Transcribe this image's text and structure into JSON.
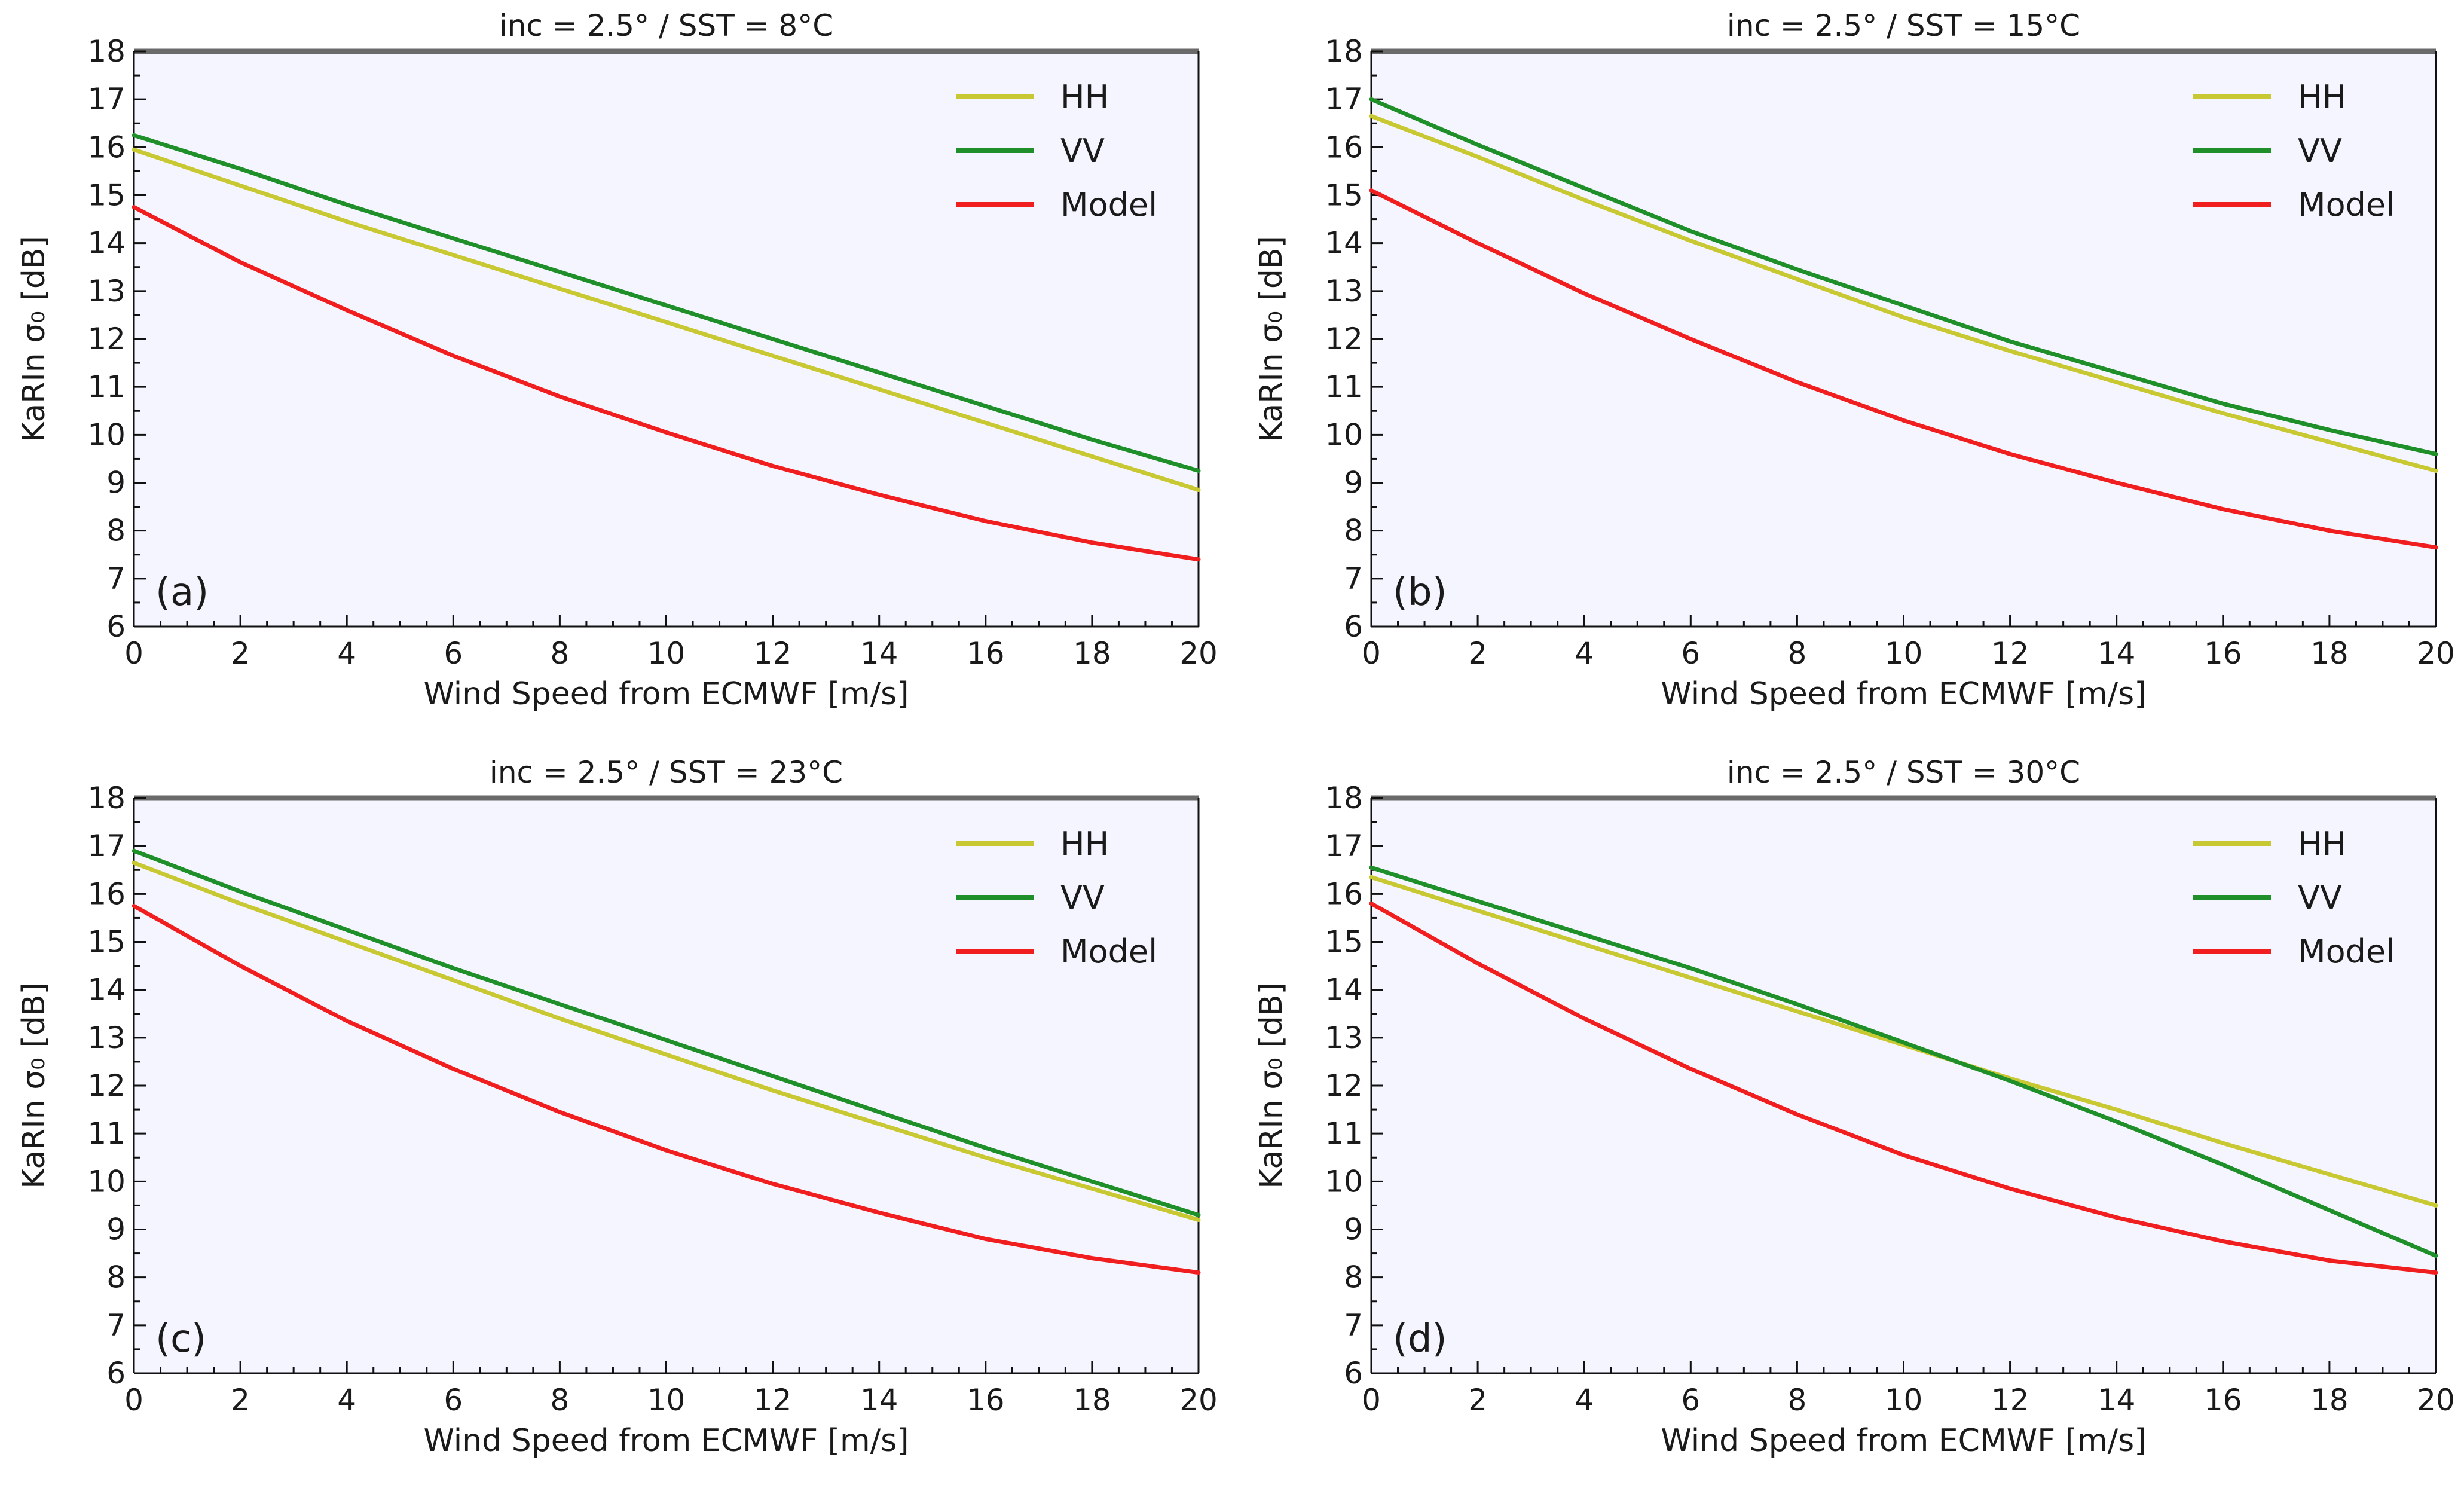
{
  "figure": {
    "background": "#ffffff",
    "plot_background": "#f4f5fe",
    "axis_color": "#555555",
    "colors": {
      "HH": "#c8c832",
      "VV": "#1f8f2a",
      "Model": "#f01e1e"
    }
  },
  "chart_data": [
    {
      "type": "line",
      "panel_label": "(a)",
      "title": "inc = 2.5° / SST = 8°C",
      "xlabel": "Wind Speed from ECMWF [m/s]",
      "ylabel": "KaRIn σ₀ [dB]",
      "xlim": [
        0,
        20
      ],
      "ylim": [
        6,
        18
      ],
      "x_ticks": [
        "0",
        "2",
        "4",
        "6",
        "8",
        "10",
        "12",
        "14",
        "16",
        "18",
        "20"
      ],
      "y_ticks": [
        "6",
        "7",
        "8",
        "9",
        "10",
        "11",
        "12",
        "13",
        "14",
        "15",
        "16",
        "17",
        "18"
      ],
      "grid": false,
      "legend_position": "top-right",
      "x": [
        0,
        2,
        4,
        6,
        8,
        10,
        12,
        14,
        16,
        18,
        20
      ],
      "series": [
        {
          "name": "HH",
          "values": [
            15.95,
            15.2,
            14.45,
            13.75,
            13.05,
            12.35,
            11.65,
            10.95,
            10.25,
            9.55,
            8.85
          ]
        },
        {
          "name": "VV",
          "values": [
            16.25,
            15.55,
            14.8,
            14.1,
            13.4,
            12.7,
            12.0,
            11.3,
            10.6,
            9.9,
            9.25
          ]
        },
        {
          "name": "Model",
          "values": [
            14.75,
            13.6,
            12.6,
            11.65,
            10.8,
            10.05,
            9.35,
            8.75,
            8.2,
            7.75,
            7.4
          ]
        }
      ]
    },
    {
      "type": "line",
      "panel_label": "(b)",
      "title": "inc = 2.5° / SST = 15°C",
      "xlabel": "Wind Speed from ECMWF [m/s]",
      "ylabel": "KaRIn σ₀ [dB]",
      "xlim": [
        0,
        20
      ],
      "ylim": [
        6,
        18
      ],
      "x_ticks": [
        "0",
        "2",
        "4",
        "6",
        "8",
        "10",
        "12",
        "14",
        "16",
        "18",
        "20"
      ],
      "y_ticks": [
        "6",
        "7",
        "8",
        "9",
        "10",
        "11",
        "12",
        "13",
        "14",
        "15",
        "16",
        "17",
        "18"
      ],
      "grid": false,
      "legend_position": "top-right",
      "x": [
        0,
        2,
        4,
        6,
        8,
        10,
        12,
        14,
        16,
        18,
        20
      ],
      "series": [
        {
          "name": "HH",
          "values": [
            16.65,
            15.8,
            14.9,
            14.05,
            13.25,
            12.45,
            11.75,
            11.1,
            10.45,
            9.85,
            9.25
          ]
        },
        {
          "name": "VV",
          "values": [
            17.0,
            16.05,
            15.15,
            14.25,
            13.45,
            12.7,
            11.95,
            11.3,
            10.65,
            10.1,
            9.6
          ]
        },
        {
          "name": "Model",
          "values": [
            15.1,
            14.0,
            12.95,
            12.0,
            11.1,
            10.3,
            9.6,
            9.0,
            8.45,
            8.0,
            7.65
          ]
        }
      ]
    },
    {
      "type": "line",
      "panel_label": "(c)",
      "title": "inc = 2.5° / SST = 23°C",
      "xlabel": "Wind Speed from ECMWF [m/s]",
      "ylabel": "KaRIn σ₀ [dB]",
      "xlim": [
        0,
        20
      ],
      "ylim": [
        6,
        18
      ],
      "x_ticks": [
        "0",
        "2",
        "4",
        "6",
        "8",
        "10",
        "12",
        "14",
        "16",
        "18",
        "20"
      ],
      "y_ticks": [
        "6",
        "7",
        "8",
        "9",
        "10",
        "11",
        "12",
        "13",
        "14",
        "15",
        "16",
        "17",
        "18"
      ],
      "grid": false,
      "legend_position": "top-right",
      "x": [
        0,
        2,
        4,
        6,
        8,
        10,
        12,
        14,
        16,
        18,
        20
      ],
      "series": [
        {
          "name": "HH",
          "values": [
            16.65,
            15.8,
            15.0,
            14.2,
            13.4,
            12.65,
            11.9,
            11.2,
            10.5,
            9.85,
            9.2
          ]
        },
        {
          "name": "VV",
          "values": [
            16.9,
            16.05,
            15.25,
            14.45,
            13.7,
            12.95,
            12.2,
            11.45,
            10.7,
            10.0,
            9.3
          ]
        },
        {
          "name": "Model",
          "values": [
            15.75,
            14.5,
            13.35,
            12.35,
            11.45,
            10.65,
            9.95,
            9.35,
            8.8,
            8.4,
            8.1
          ]
        }
      ]
    },
    {
      "type": "line",
      "panel_label": "(d)",
      "title": "inc = 2.5° / SST = 30°C",
      "xlabel": "Wind Speed from ECMWF [m/s]",
      "ylabel": "KaRIn σ₀ [dB]",
      "xlim": [
        0,
        20
      ],
      "ylim": [
        6,
        18
      ],
      "x_ticks": [
        "0",
        "2",
        "4",
        "6",
        "8",
        "10",
        "12",
        "14",
        "16",
        "18",
        "20"
      ],
      "y_ticks": [
        "6",
        "7",
        "8",
        "9",
        "10",
        "11",
        "12",
        "13",
        "14",
        "15",
        "16",
        "17",
        "18"
      ],
      "grid": false,
      "legend_position": "top-right",
      "x": [
        0,
        2,
        4,
        6,
        8,
        10,
        12,
        14,
        16,
        18,
        20
      ],
      "series": [
        {
          "name": "HH",
          "values": [
            16.35,
            15.65,
            14.95,
            14.25,
            13.55,
            12.85,
            12.15,
            11.5,
            10.8,
            10.15,
            9.5
          ]
        },
        {
          "name": "VV",
          "values": [
            16.55,
            15.85,
            15.15,
            14.45,
            13.7,
            12.9,
            12.1,
            11.25,
            10.35,
            9.4,
            8.45
          ]
        },
        {
          "name": "Model",
          "values": [
            15.8,
            14.55,
            13.4,
            12.35,
            11.4,
            10.55,
            9.85,
            9.25,
            8.75,
            8.35,
            8.1
          ]
        }
      ]
    }
  ]
}
